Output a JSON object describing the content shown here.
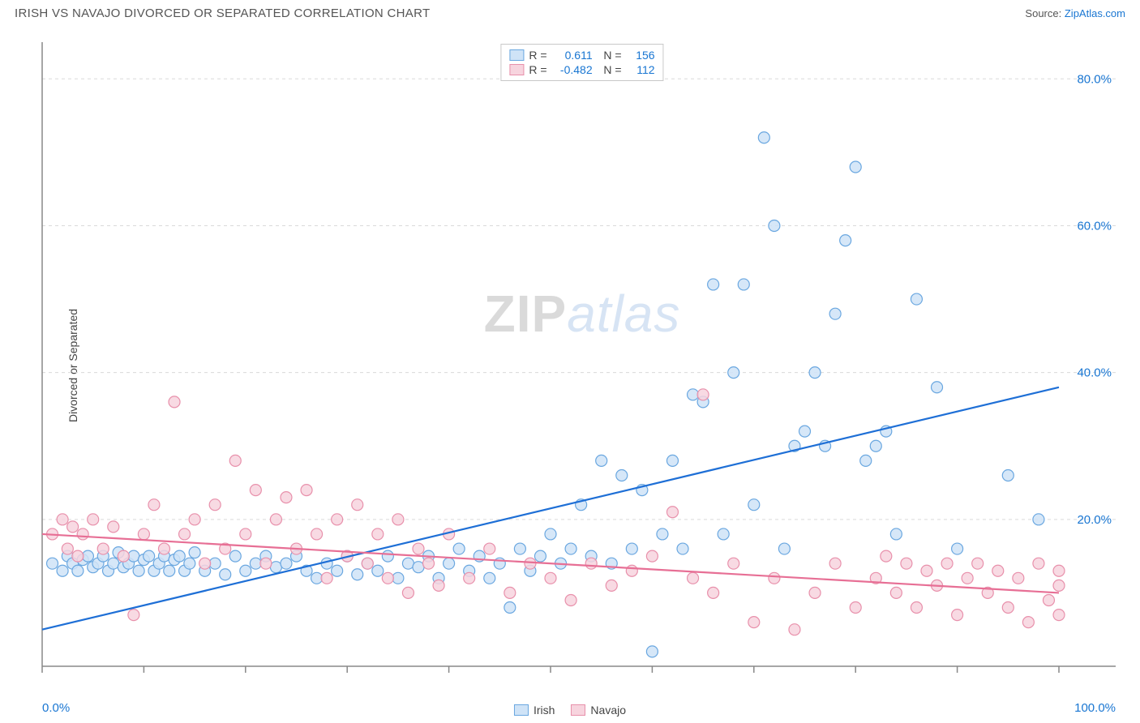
{
  "header": {
    "title": "IRISH VS NAVAJO DIVORCED OR SEPARATED CORRELATION CHART",
    "source_label": "Source:",
    "source_name": "ZipAtlas.com"
  },
  "watermark": {
    "zip": "ZIP",
    "atlas": "atlas"
  },
  "chart": {
    "type": "scatter",
    "ylabel": "Divorced or Separated",
    "xlim": [
      0,
      100
    ],
    "ylim": [
      0,
      85
    ],
    "x_ticks": [
      0,
      10,
      20,
      30,
      40,
      50,
      60,
      70,
      80,
      90,
      100
    ],
    "x_tick_labels": {
      "0": "0.0%",
      "100": "100.0%"
    },
    "y_gridlines": [
      20,
      40,
      60,
      80
    ],
    "y_tick_labels": {
      "20": "20.0%",
      "40": "40.0%",
      "60": "60.0%",
      "80": "80.0%"
    },
    "background_color": "#ffffff",
    "grid_color": "#d9d9d9",
    "axis_color": "#888888",
    "marker_radius": 7,
    "marker_stroke_width": 1.2,
    "line_width": 2.2,
    "series": [
      {
        "name": "Irish",
        "fill_color": "#cfe3f7",
        "stroke_color": "#6aa7e0",
        "line_color": "#1e6fd6",
        "R": "0.611",
        "N": "156",
        "trend": {
          "x1": 0,
          "y1": 5,
          "x2": 100,
          "y2": 38
        },
        "points": [
          [
            1,
            14
          ],
          [
            2,
            13
          ],
          [
            2.5,
            15
          ],
          [
            3,
            14
          ],
          [
            3.5,
            13
          ],
          [
            4,
            14.5
          ],
          [
            4.5,
            15
          ],
          [
            5,
            13.5
          ],
          [
            5.5,
            14
          ],
          [
            6,
            15
          ],
          [
            6.5,
            13
          ],
          [
            7,
            14
          ],
          [
            7.5,
            15.5
          ],
          [
            8,
            13.5
          ],
          [
            8.5,
            14
          ],
          [
            9,
            15
          ],
          [
            9.5,
            13
          ],
          [
            10,
            14.5
          ],
          [
            10.5,
            15
          ],
          [
            11,
            13
          ],
          [
            11.5,
            14
          ],
          [
            12,
            15
          ],
          [
            12.5,
            13
          ],
          [
            13,
            14.5
          ],
          [
            13.5,
            15
          ],
          [
            14,
            13
          ],
          [
            14.5,
            14
          ],
          [
            15,
            15.5
          ],
          [
            16,
            13
          ],
          [
            17,
            14
          ],
          [
            18,
            12.5
          ],
          [
            19,
            15
          ],
          [
            20,
            13
          ],
          [
            21,
            14
          ],
          [
            22,
            15
          ],
          [
            23,
            13.5
          ],
          [
            24,
            14
          ],
          [
            25,
            15
          ],
          [
            26,
            13
          ],
          [
            27,
            12
          ],
          [
            28,
            14
          ],
          [
            29,
            13
          ],
          [
            30,
            15
          ],
          [
            31,
            12.5
          ],
          [
            32,
            14
          ],
          [
            33,
            13
          ],
          [
            34,
            15
          ],
          [
            35,
            12
          ],
          [
            36,
            14
          ],
          [
            37,
            13.5
          ],
          [
            38,
            15
          ],
          [
            39,
            12
          ],
          [
            40,
            14
          ],
          [
            41,
            16
          ],
          [
            42,
            13
          ],
          [
            43,
            15
          ],
          [
            44,
            12
          ],
          [
            45,
            14
          ],
          [
            46,
            8
          ],
          [
            47,
            16
          ],
          [
            48,
            13
          ],
          [
            49,
            15
          ],
          [
            50,
            18
          ],
          [
            51,
            14
          ],
          [
            52,
            16
          ],
          [
            53,
            22
          ],
          [
            54,
            15
          ],
          [
            55,
            28
          ],
          [
            56,
            14
          ],
          [
            57,
            26
          ],
          [
            58,
            16
          ],
          [
            59,
            24
          ],
          [
            60,
            2
          ],
          [
            61,
            18
          ],
          [
            62,
            28
          ],
          [
            63,
            16
          ],
          [
            64,
            37
          ],
          [
            65,
            36
          ],
          [
            66,
            52
          ],
          [
            67,
            18
          ],
          [
            68,
            40
          ],
          [
            69,
            52
          ],
          [
            70,
            22
          ],
          [
            71,
            72
          ],
          [
            72,
            60
          ],
          [
            73,
            16
          ],
          [
            74,
            30
          ],
          [
            75,
            32
          ],
          [
            76,
            40
          ],
          [
            77,
            30
          ],
          [
            78,
            48
          ],
          [
            79,
            58
          ],
          [
            80,
            68
          ],
          [
            81,
            28
          ],
          [
            82,
            30
          ],
          [
            83,
            32
          ],
          [
            84,
            18
          ],
          [
            86,
            50
          ],
          [
            88,
            38
          ],
          [
            90,
            16
          ],
          [
            95,
            26
          ],
          [
            98,
            20
          ]
        ]
      },
      {
        "name": "Navajo",
        "fill_color": "#f7d4de",
        "stroke_color": "#e890ab",
        "line_color": "#e76f95",
        "R": "-0.482",
        "N": "112",
        "trend": {
          "x1": 0,
          "y1": 18,
          "x2": 100,
          "y2": 10
        },
        "points": [
          [
            1,
            18
          ],
          [
            2,
            20
          ],
          [
            2.5,
            16
          ],
          [
            3,
            19
          ],
          [
            3.5,
            15
          ],
          [
            4,
            18
          ],
          [
            5,
            20
          ],
          [
            6,
            16
          ],
          [
            7,
            19
          ],
          [
            8,
            15
          ],
          [
            9,
            7
          ],
          [
            10,
            18
          ],
          [
            11,
            22
          ],
          [
            12,
            16
          ],
          [
            13,
            36
          ],
          [
            14,
            18
          ],
          [
            15,
            20
          ],
          [
            16,
            14
          ],
          [
            17,
            22
          ],
          [
            18,
            16
          ],
          [
            19,
            28
          ],
          [
            20,
            18
          ],
          [
            21,
            24
          ],
          [
            22,
            14
          ],
          [
            23,
            20
          ],
          [
            24,
            23
          ],
          [
            25,
            16
          ],
          [
            26,
            24
          ],
          [
            27,
            18
          ],
          [
            28,
            12
          ],
          [
            29,
            20
          ],
          [
            30,
            15
          ],
          [
            31,
            22
          ],
          [
            32,
            14
          ],
          [
            33,
            18
          ],
          [
            34,
            12
          ],
          [
            35,
            20
          ],
          [
            36,
            10
          ],
          [
            37,
            16
          ],
          [
            38,
            14
          ],
          [
            39,
            11
          ],
          [
            40,
            18
          ],
          [
            42,
            12
          ],
          [
            44,
            16
          ],
          [
            46,
            10
          ],
          [
            48,
            14
          ],
          [
            50,
            12
          ],
          [
            52,
            9
          ],
          [
            54,
            14
          ],
          [
            56,
            11
          ],
          [
            58,
            13
          ],
          [
            60,
            15
          ],
          [
            62,
            21
          ],
          [
            64,
            12
          ],
          [
            65,
            37
          ],
          [
            66,
            10
          ],
          [
            68,
            14
          ],
          [
            70,
            6
          ],
          [
            72,
            12
          ],
          [
            74,
            5
          ],
          [
            76,
            10
          ],
          [
            78,
            14
          ],
          [
            80,
            8
          ],
          [
            82,
            12
          ],
          [
            83,
            15
          ],
          [
            84,
            10
          ],
          [
            85,
            14
          ],
          [
            86,
            8
          ],
          [
            87,
            13
          ],
          [
            88,
            11
          ],
          [
            89,
            14
          ],
          [
            90,
            7
          ],
          [
            91,
            12
          ],
          [
            92,
            14
          ],
          [
            93,
            10
          ],
          [
            94,
            13
          ],
          [
            95,
            8
          ],
          [
            96,
            12
          ],
          [
            97,
            6
          ],
          [
            98,
            14
          ],
          [
            99,
            9
          ],
          [
            100,
            11
          ],
          [
            100,
            7
          ],
          [
            100,
            13
          ]
        ]
      }
    ],
    "bottom_legend": [
      {
        "label": "Irish",
        "fill": "#cfe3f7",
        "stroke": "#6aa7e0"
      },
      {
        "label": "Navajo",
        "fill": "#f7d4de",
        "stroke": "#e890ab"
      }
    ]
  }
}
